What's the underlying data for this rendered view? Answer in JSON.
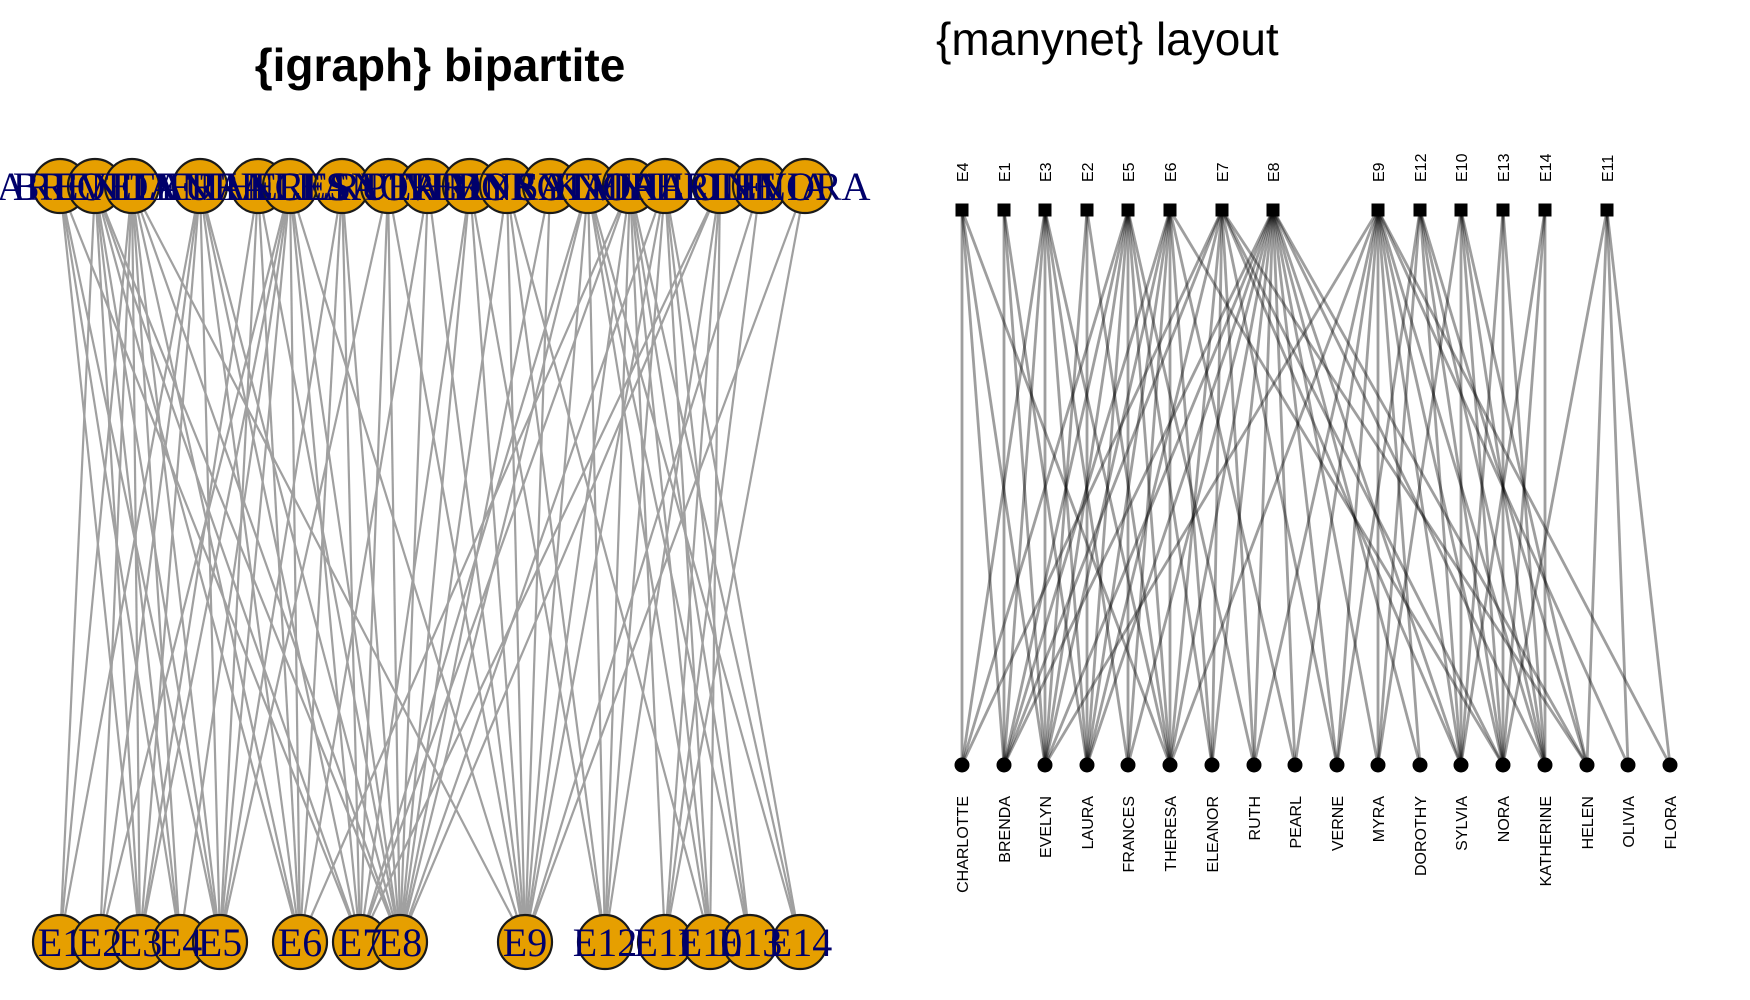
{
  "left_panel": {
    "title": "{igraph} bipartite",
    "colors": {
      "vertex_fill": "#E69F00",
      "vertex_stroke": "#1a1a1a",
      "label": "#00006B",
      "edge": "#A0A0A0"
    },
    "top_labels": [
      "CHARLOTTE",
      "BRENDA",
      "EVELYN",
      "LAURA",
      "FRANCES",
      "THERESA",
      "ELEANOR",
      "RUTH",
      "PEARL",
      "VERNE",
      "MYRA",
      "DOROTHY",
      "SYLVIA",
      "NORA",
      "KATHERINE",
      "HELEN",
      "OLIVIA",
      "FLORA"
    ],
    "bottom_labels": [
      "E1",
      "E2",
      "E3",
      "E4",
      "E5",
      "E6",
      "E7",
      "E8",
      "E9",
      "E12",
      "E11",
      "E10",
      "E13",
      "E14"
    ]
  },
  "right_panel": {
    "title": "{manynet} layout",
    "colors": {
      "node": "#000000",
      "edge": "#000000",
      "edge_opacity": 0.38
    },
    "event_labels": [
      "E4",
      "E1",
      "E3",
      "E2",
      "E5",
      "E6",
      "E7",
      "E8",
      "E9",
      "E12",
      "E10",
      "E13",
      "E14",
      "E11"
    ],
    "person_labels": [
      "CHARLOTTE",
      "BRENDA",
      "EVELYN",
      "LAURA",
      "FRANCES",
      "THERESA",
      "ELEANOR",
      "RUTH",
      "PEARL",
      "VERNE",
      "MYRA",
      "DOROTHY",
      "SYLVIA",
      "NORA",
      "KATHERINE",
      "HELEN",
      "OLIVIA",
      "FLORA"
    ]
  },
  "edges": [
    [
      "EVELYN",
      "E1"
    ],
    [
      "EVELYN",
      "E2"
    ],
    [
      "EVELYN",
      "E3"
    ],
    [
      "EVELYN",
      "E4"
    ],
    [
      "EVELYN",
      "E5"
    ],
    [
      "EVELYN",
      "E6"
    ],
    [
      "EVELYN",
      "E8"
    ],
    [
      "EVELYN",
      "E9"
    ],
    [
      "LAURA",
      "E1"
    ],
    [
      "LAURA",
      "E2"
    ],
    [
      "LAURA",
      "E3"
    ],
    [
      "LAURA",
      "E5"
    ],
    [
      "LAURA",
      "E6"
    ],
    [
      "LAURA",
      "E7"
    ],
    [
      "LAURA",
      "E8"
    ],
    [
      "THERESA",
      "E2"
    ],
    [
      "THERESA",
      "E3"
    ],
    [
      "THERESA",
      "E4"
    ],
    [
      "THERESA",
      "E5"
    ],
    [
      "THERESA",
      "E6"
    ],
    [
      "THERESA",
      "E7"
    ],
    [
      "THERESA",
      "E8"
    ],
    [
      "THERESA",
      "E9"
    ],
    [
      "BRENDA",
      "E1"
    ],
    [
      "BRENDA",
      "E3"
    ],
    [
      "BRENDA",
      "E4"
    ],
    [
      "BRENDA",
      "E5"
    ],
    [
      "BRENDA",
      "E6"
    ],
    [
      "BRENDA",
      "E7"
    ],
    [
      "BRENDA",
      "E8"
    ],
    [
      "CHARLOTTE",
      "E3"
    ],
    [
      "CHARLOTTE",
      "E4"
    ],
    [
      "CHARLOTTE",
      "E5"
    ],
    [
      "CHARLOTTE",
      "E7"
    ],
    [
      "FRANCES",
      "E3"
    ],
    [
      "FRANCES",
      "E5"
    ],
    [
      "FRANCES",
      "E6"
    ],
    [
      "FRANCES",
      "E8"
    ],
    [
      "ELEANOR",
      "E5"
    ],
    [
      "ELEANOR",
      "E6"
    ],
    [
      "ELEANOR",
      "E7"
    ],
    [
      "ELEANOR",
      "E8"
    ],
    [
      "PEARL",
      "E6"
    ],
    [
      "PEARL",
      "E8"
    ],
    [
      "PEARL",
      "E9"
    ],
    [
      "RUTH",
      "E5"
    ],
    [
      "RUTH",
      "E7"
    ],
    [
      "RUTH",
      "E8"
    ],
    [
      "RUTH",
      "E9"
    ],
    [
      "VERNE",
      "E7"
    ],
    [
      "VERNE",
      "E8"
    ],
    [
      "VERNE",
      "E9"
    ],
    [
      "VERNE",
      "E12"
    ],
    [
      "MYRA",
      "E8"
    ],
    [
      "MYRA",
      "E9"
    ],
    [
      "MYRA",
      "E10"
    ],
    [
      "MYRA",
      "E12"
    ],
    [
      "KATHERINE",
      "E8"
    ],
    [
      "KATHERINE",
      "E9"
    ],
    [
      "KATHERINE",
      "E10"
    ],
    [
      "KATHERINE",
      "E12"
    ],
    [
      "KATHERINE",
      "E13"
    ],
    [
      "KATHERINE",
      "E14"
    ],
    [
      "SYLVIA",
      "E7"
    ],
    [
      "SYLVIA",
      "E8"
    ],
    [
      "SYLVIA",
      "E9"
    ],
    [
      "SYLVIA",
      "E10"
    ],
    [
      "SYLVIA",
      "E12"
    ],
    [
      "SYLVIA",
      "E13"
    ],
    [
      "SYLVIA",
      "E14"
    ],
    [
      "NORA",
      "E6"
    ],
    [
      "NORA",
      "E7"
    ],
    [
      "NORA",
      "E9"
    ],
    [
      "NORA",
      "E10"
    ],
    [
      "NORA",
      "E11"
    ],
    [
      "NORA",
      "E12"
    ],
    [
      "NORA",
      "E13"
    ],
    [
      "NORA",
      "E14"
    ],
    [
      "HELEN",
      "E7"
    ],
    [
      "HELEN",
      "E8"
    ],
    [
      "HELEN",
      "E10"
    ],
    [
      "HELEN",
      "E11"
    ],
    [
      "HELEN",
      "E12"
    ],
    [
      "DOROTHY",
      "E8"
    ],
    [
      "DOROTHY",
      "E9"
    ],
    [
      "OLIVIA",
      "E9"
    ],
    [
      "OLIVIA",
      "E11"
    ],
    [
      "FLORA",
      "E9"
    ],
    [
      "FLORA",
      "E11"
    ]
  ]
}
